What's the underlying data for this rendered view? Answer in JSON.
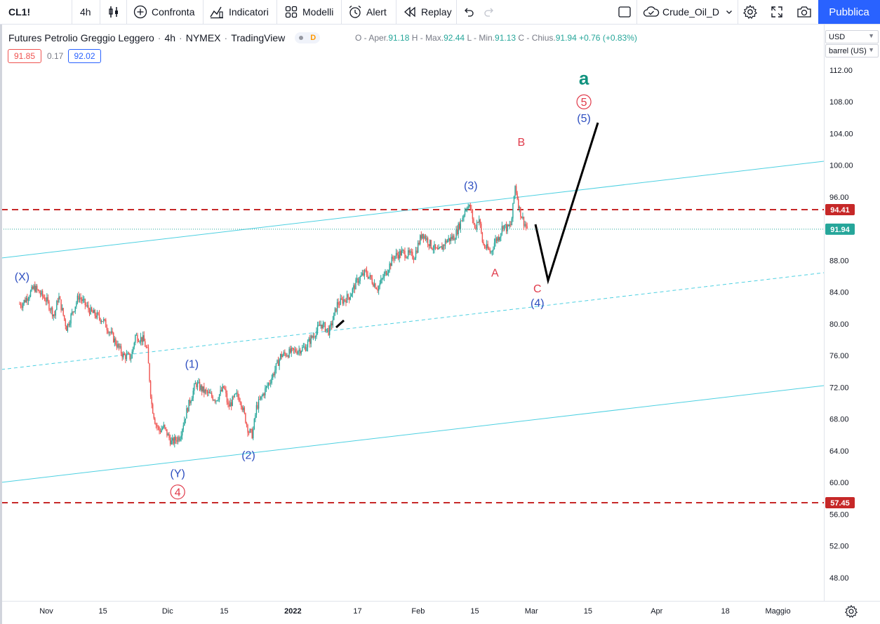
{
  "toolbar": {
    "symbol": "CL1!",
    "interval": "4h",
    "compare_label": "Confronta",
    "indicators_label": "Indicatori",
    "templates_label": "Modelli",
    "alert_label": "Alert",
    "replay_label": "Replay",
    "layout_name": "Crude_Oil_D",
    "publish_label": "Pubblica"
  },
  "legend": {
    "title": "Futures Petrolio Greggio Leggero",
    "interval": "4h",
    "exchange": "NYMEX",
    "source": "TradingView",
    "data_badge": "D",
    "open_label": "O - Aper.",
    "open": "91.18",
    "high_label": "H - Max.",
    "high": "92.44",
    "low_label": "L - Min.",
    "low": "91.13",
    "close_label": "C - Chius.",
    "close": "91.94",
    "change": "+0.76",
    "change_pct": "(+0.83%)",
    "bid": "91.85",
    "spread": "0.17",
    "ask": "92.02"
  },
  "price_scale": {
    "currency": "USD",
    "unit": "barrel (US)",
    "ticks": [
      "112.00",
      "108.00",
      "104.00",
      "100.00",
      "96.00",
      "92.00",
      "88.00",
      "84.00",
      "80.00",
      "76.00",
      "72.00",
      "68.00",
      "64.00",
      "60.00",
      "56.00",
      "52.00",
      "48.00"
    ],
    "price_min": 44.5,
    "price_max": 116.5,
    "last_price": "91.94",
    "resistance": "94.41",
    "support": "57.45"
  },
  "time_scale": {
    "ticks": [
      {
        "label": "Nov",
        "day": 0,
        "bold": false
      },
      {
        "label": "15",
        "day": 14,
        "bold": false
      },
      {
        "label": "Dic",
        "day": 30,
        "bold": false
      },
      {
        "label": "15",
        "day": 44,
        "bold": false
      },
      {
        "label": "2022",
        "day": 61,
        "bold": true
      },
      {
        "label": "17",
        "day": 77,
        "bold": false
      },
      {
        "label": "Feb",
        "day": 92,
        "bold": false
      },
      {
        "label": "15",
        "day": 106,
        "bold": false
      },
      {
        "label": "Mar",
        "day": 120,
        "bold": false
      },
      {
        "label": "15",
        "day": 134,
        "bold": false
      },
      {
        "label": "Apr",
        "day": 151,
        "bold": false
      },
      {
        "label": "18",
        "day": 168,
        "bold": false
      },
      {
        "label": "Maggio",
        "day": 181,
        "bold": false
      }
    ]
  },
  "colors": {
    "up": "#26a69a",
    "down": "#ef5350",
    "channel": "#4dd0e1",
    "dashed_level": "#c62828",
    "wave_blue": "#2d4ec0",
    "wave_red": "#e03a4a",
    "wave_green": "#10927e",
    "last_price_bg": "#26a69a",
    "level_label_bg": "#c62828"
  },
  "chart_data": {
    "type": "candlestick",
    "x_unit": "days since 2021-11-01",
    "price_anchors": [
      [
        -6,
        82.5
      ],
      [
        -3,
        84.6
      ],
      [
        0,
        83.0
      ],
      [
        2,
        81.0
      ],
      [
        3,
        83.5
      ],
      [
        5,
        79.5
      ],
      [
        8,
        83.5
      ],
      [
        11,
        81.5
      ],
      [
        14,
        80.5
      ],
      [
        17,
        77.8
      ],
      [
        19,
        76.0
      ],
      [
        21,
        75.8
      ],
      [
        22,
        78.5
      ],
      [
        24,
        78.0
      ],
      [
        25,
        76.5
      ],
      [
        26,
        70.0
      ],
      [
        27,
        67.5
      ],
      [
        28,
        66.5
      ],
      [
        29,
        67.0
      ],
      [
        31,
        65.0
      ],
      [
        33,
        65.8
      ],
      [
        35,
        69.5
      ],
      [
        37,
        72.5
      ],
      [
        39,
        71.5
      ],
      [
        42,
        70.5
      ],
      [
        44,
        72.0
      ],
      [
        45,
        69.5
      ],
      [
        47,
        71.0
      ],
      [
        48,
        70.5
      ],
      [
        50,
        66.5
      ],
      [
        51,
        66.0
      ],
      [
        52,
        69.5
      ],
      [
        54,
        71.5
      ],
      [
        56,
        73.5
      ],
      [
        58,
        76.0
      ],
      [
        61,
        76.5
      ],
      [
        64,
        77.0
      ],
      [
        66,
        78.5
      ],
      [
        68,
        80.0
      ],
      [
        70,
        79.0
      ],
      [
        72,
        82.5
      ],
      [
        75,
        83.5
      ],
      [
        77,
        85.5
      ],
      [
        79,
        86.5
      ],
      [
        82,
        84.5
      ],
      [
        84,
        86.5
      ],
      [
        86,
        88.5
      ],
      [
        88,
        89.0
      ],
      [
        91,
        88.5
      ],
      [
        93,
        91.5
      ],
      [
        95,
        90.0
      ],
      [
        97,
        89.0
      ],
      [
        99,
        90.5
      ],
      [
        101,
        91.0
      ],
      [
        103,
        93.5
      ],
      [
        104,
        95.0
      ],
      [
        105,
        94.5
      ],
      [
        106,
        92.0
      ],
      [
        107,
        93.5
      ],
      [
        108,
        90.0
      ],
      [
        109,
        89.5
      ],
      [
        110,
        89.0
      ],
      [
        111,
        90.5
      ],
      [
        112,
        91.0
      ],
      [
        113,
        92.5
      ],
      [
        114,
        92.0
      ],
      [
        115,
        92.5
      ],
      [
        116,
        97.5
      ],
      [
        117,
        94.5
      ],
      [
        118,
        93.0
      ],
      [
        119,
        92.0
      ]
    ],
    "annotations": [
      {
        "text": "(X)",
        "day": -6,
        "price": 86.0,
        "color": "wave_blue"
      },
      {
        "text": "(1)",
        "day": 36,
        "price": 75.0,
        "color": "wave_blue"
      },
      {
        "text": "(2)",
        "day": 50,
        "price": 63.5,
        "color": "wave_blue"
      },
      {
        "text": "(Y)",
        "day": 32.5,
        "price": 61.2,
        "color": "wave_blue"
      },
      {
        "text": "4",
        "day": 32.5,
        "price": 58.8,
        "color": "wave_red",
        "circle": true
      },
      {
        "text": "(3)",
        "day": 105,
        "price": 97.5,
        "color": "wave_blue"
      },
      {
        "text": "A",
        "day": 111,
        "price": 86.5,
        "color": "wave_red"
      },
      {
        "text": "B",
        "day": 117.5,
        "price": 103.0,
        "color": "wave_red"
      },
      {
        "text": "C",
        "day": 121.5,
        "price": 84.5,
        "color": "wave_red"
      },
      {
        "text": "(4)",
        "day": 121.5,
        "price": 82.7,
        "color": "wave_blue"
      },
      {
        "text": "5",
        "day": 133,
        "price": 108.0,
        "color": "wave_red",
        "circle": true
      },
      {
        "text": "(5)",
        "day": 133,
        "price": 106.0,
        "color": "wave_blue"
      },
      {
        "text": "a",
        "day": 133,
        "price": 111.0,
        "color": "wave_green",
        "big": true
      }
    ]
  }
}
